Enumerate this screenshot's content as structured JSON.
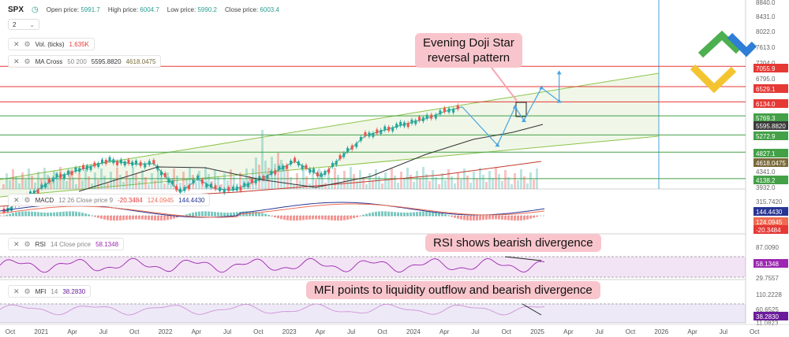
{
  "header": {
    "symbol": "SPX",
    "open_label": "Open price:",
    "open_value": "5991.7",
    "high_label": "High price:",
    "high_value": "6004.7",
    "low_label": "Low price:",
    "low_value": "5990.2",
    "close_label": "Close price:",
    "close_value": "6003.4",
    "interval": "2"
  },
  "indicators": {
    "vol": {
      "name": "Vol. (ticks)",
      "value": "1.635K"
    },
    "ma": {
      "name": "MA Cross",
      "params": "50 200",
      "v1": "5595.8820",
      "v2": "4618.0475"
    },
    "macd": {
      "name": "MACD",
      "params": "12 26 Close price 9",
      "v1": "-20.3484",
      "v2": "124.0945",
      "v3": "144.4430"
    },
    "rsi": {
      "name": "RSI",
      "params": "14 Close price",
      "v1": "58.1348"
    },
    "mfi": {
      "name": "MFI",
      "params": "14",
      "v1": "38.2830"
    }
  },
  "annotations": {
    "doji": [
      "Evening Doji Star",
      "reversal pattern"
    ],
    "rsi": "RSI shows bearish divergence",
    "mfi": "MFI points to liquidity outflow and bearish divergence"
  },
  "axis_labels": {
    "price_ticks": [
      "8840.0",
      "8431.0",
      "8022.0",
      "7613.0",
      "7204.0",
      "6795.0",
      "4341.0",
      "3932.0"
    ],
    "price_levels": [
      {
        "label": "7055.9",
        "color": "#e53935"
      },
      {
        "label": "6529.1",
        "color": "#e53935"
      },
      {
        "label": "6134.0",
        "color": "#e53935"
      },
      {
        "label": "5769.3",
        "color": "#43a047"
      },
      {
        "label": "5595.8820",
        "color": "#3a3a3a"
      },
      {
        "label": "5272.9",
        "color": "#43a047"
      },
      {
        "label": "4827.1",
        "color": "#43a047"
      },
      {
        "label": "4618.0475",
        "color": "#7a6a3a"
      },
      {
        "label": "4138.2",
        "color": "#43a047"
      }
    ],
    "macd_ticks": [
      "315.7420"
    ],
    "macd_levels": [
      {
        "label": "144.4430",
        "color": "#283593"
      },
      {
        "label": "124.0945",
        "color": "#ef6c52"
      },
      {
        "label": "-20.3484",
        "color": "#e53935"
      }
    ],
    "rsi_ticks": [
      "87.0090",
      "29.7557"
    ],
    "rsi_level": {
      "label": "58.1348",
      "color": "#9c27b0"
    },
    "mfi_ticks": [
      "110.2228",
      "60.6525",
      "11.0823"
    ],
    "mfi_level": {
      "label": "38.2830",
      "color": "#6a1b9a"
    },
    "time_ticks": [
      "Oct",
      "2021",
      "Apr",
      "Jul",
      "Oct",
      "2022",
      "Apr",
      "Jul",
      "Oct",
      "2023",
      "Apr",
      "Jul",
      "Oct",
      "2024",
      "Apr",
      "Jul",
      "Oct",
      "2025",
      "Apr",
      "Jul",
      "Oct",
      "2026",
      "Apr",
      "Jul",
      "Oct"
    ]
  },
  "colors": {
    "bull": "#26a69a",
    "bear": "#ef5350",
    "projection": "#4aa3df",
    "channel": "#8bc34a",
    "resistance": "#e53935",
    "support": "#43a047"
  },
  "chart_data": {
    "type": "line",
    "title": "",
    "x_range": [
      "2020-09",
      "2026-12"
    ],
    "ylim": [
      3932,
      8840
    ],
    "grid": false,
    "price_close": [
      {
        "x": "2020-10",
        "y": 3270
      },
      {
        "x": "2021-01",
        "y": 3714
      },
      {
        "x": "2021-04",
        "y": 4181
      },
      {
        "x": "2021-07",
        "y": 4395
      },
      {
        "x": "2021-10",
        "y": 4605
      },
      {
        "x": "2022-01",
        "y": 4516
      },
      {
        "x": "2022-03",
        "y": 4530
      },
      {
        "x": "2022-06",
        "y": 3785
      },
      {
        "x": "2022-08",
        "y": 4130
      },
      {
        "x": "2022-10",
        "y": 3871
      },
      {
        "x": "2022-12",
        "y": 3840
      },
      {
        "x": "2023-03",
        "y": 4109
      },
      {
        "x": "2023-07",
        "y": 4589
      },
      {
        "x": "2023-10",
        "y": 4194
      },
      {
        "x": "2024-01",
        "y": 4846
      },
      {
        "x": "2024-03",
        "y": 5254
      },
      {
        "x": "2024-07",
        "y": 5522
      },
      {
        "x": "2024-10",
        "y": 5705
      },
      {
        "x": "2024-12",
        "y": 5882
      },
      {
        "x": "2025-02",
        "y": 6003
      }
    ],
    "ma50_end": 5595.882,
    "ma200_end": 4618.0475,
    "resistance_levels": [
      7055.9,
      6529.1,
      6134.0
    ],
    "support_levels": [
      5769.3,
      5272.9,
      4827.1,
      4138.2
    ],
    "projection": [
      {
        "x": "2025-02",
        "y": 6003
      },
      {
        "x": "2025-06",
        "y": 5010
      },
      {
        "x": "2025-08",
        "y": 6000
      },
      {
        "x": "2025-09",
        "y": 5650
      },
      {
        "x": "2025-11",
        "y": 6500
      },
      {
        "x": "2026-01",
        "y": 6150
      },
      {
        "x": "2026-01",
        "y": 6890
      }
    ],
    "macd": {
      "macd": 124.0945,
      "signal": 144.443,
      "histogram": -20.3484
    },
    "rsi": 58.1348,
    "mfi": 38.283
  }
}
